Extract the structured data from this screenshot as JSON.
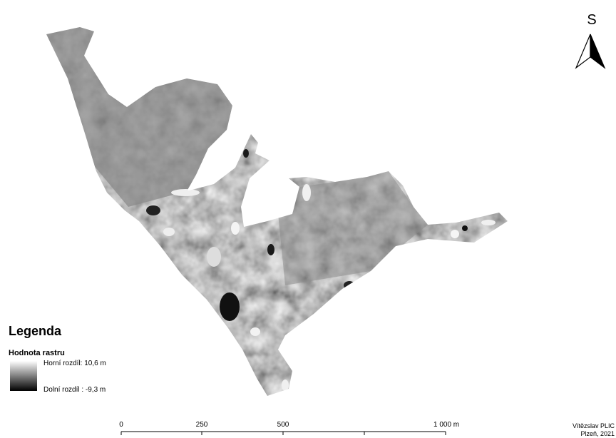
{
  "north_arrow": {
    "label": "S"
  },
  "legend": {
    "title": "Legenda",
    "subtitle": "Hodnota rastru",
    "high": "Horní rozdíl: 10,6 m",
    "low": "Dolní rozdíl : -9,3 m"
  },
  "scale_bar": {
    "labels": [
      "0",
      "250",
      "500",
      "1 000 m"
    ]
  },
  "author": {
    "name": "Vítězslav PLIC",
    "place_date": "Plzeň, 2021"
  }
}
